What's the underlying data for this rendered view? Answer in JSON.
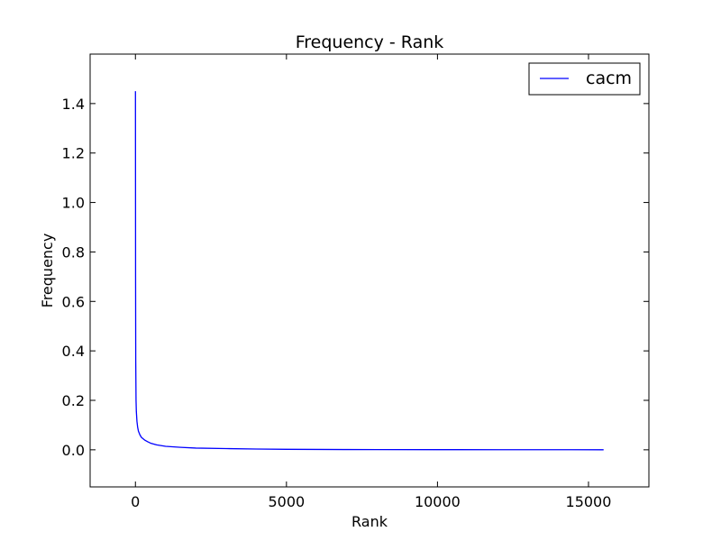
{
  "chart_data": {
    "type": "line",
    "title": "Frequency - Rank",
    "xlabel": "Rank",
    "ylabel": "Frequency",
    "xlim": [
      -1500,
      17000
    ],
    "ylim": [
      -0.15,
      1.6
    ],
    "xticks": [
      0,
      5000,
      10000,
      15000
    ],
    "xtick_labels": [
      "0",
      "5000",
      "10000",
      "15000"
    ],
    "yticks": [
      0.0,
      0.2,
      0.4,
      0.6,
      0.8,
      1.0,
      1.2,
      1.4
    ],
    "ytick_labels": [
      "0.0",
      "0.2",
      "0.4",
      "0.6",
      "0.8",
      "1.0",
      "1.2",
      "1.4"
    ],
    "grid": false,
    "legend_position": "top-right",
    "series": [
      {
        "name": "cacm",
        "color": "#0000ff",
        "x": [
          1,
          5,
          10,
          20,
          30,
          50,
          75,
          100,
          150,
          200,
          300,
          400,
          500,
          700,
          1000,
          1500,
          2000,
          3000,
          4000,
          5000,
          6000,
          7000,
          8000,
          10000,
          12000,
          14000,
          15500
        ],
        "y": [
          1.45,
          0.7,
          0.36,
          0.2,
          0.155,
          0.115,
          0.09,
          0.075,
          0.06,
          0.05,
          0.04,
          0.033,
          0.027,
          0.02,
          0.014,
          0.01,
          0.007,
          0.005,
          0.003,
          0.002,
          0.0015,
          0.001,
          0.0008,
          0.0006,
          0.0004,
          0.0003,
          0.0002
        ]
      }
    ]
  }
}
